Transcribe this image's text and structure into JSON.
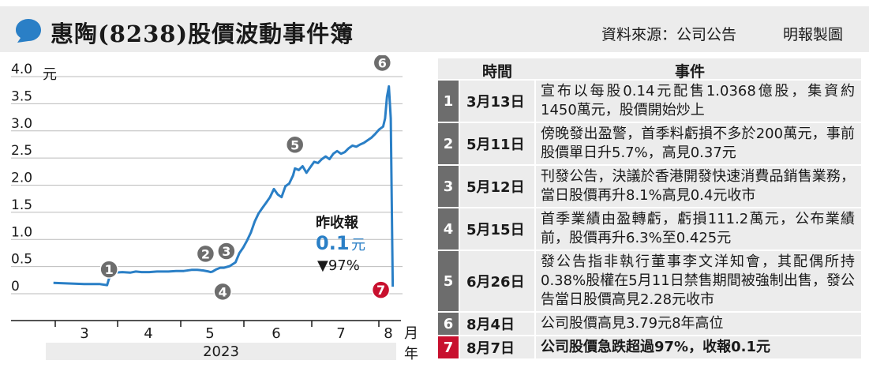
{
  "header": {
    "title": "惠陶(8238)股價波動事件簿",
    "source": "資料來源：公司公告",
    "credit": "明報製圖"
  },
  "chart_data": {
    "type": "line",
    "y_unit_label": "元",
    "x_unit_label_top": "月",
    "x_unit_label_bottom": "年",
    "year_label": "2023",
    "ylim": [
      0,
      4.0
    ],
    "y_ticks": [
      "4.0",
      "3.5",
      "3.0",
      "2.5",
      "2.0",
      "1.5",
      "1.0",
      "0.5",
      "0"
    ],
    "x_ticks": [
      "3",
      "4",
      "5",
      "6",
      "7",
      "8"
    ],
    "callout": {
      "label": "昨收報",
      "price": "0.1",
      "price_unit": "元",
      "change": "▼97%"
    },
    "markers": [
      {
        "id": "1",
        "x": 73,
        "y": 0.1,
        "color": "#6d6d6d"
      },
      {
        "id": "2",
        "x": 125,
        "y": 0.3,
        "color": "#6d6d6d"
      },
      {
        "id": "3",
        "x": 126,
        "y": 0.32,
        "color": "#6d6d6d"
      },
      {
        "id": "4",
        "x": 129,
        "y": 0.33,
        "color": "#6d6d6d"
      },
      {
        "id": "5",
        "x": 170,
        "y": 2.28,
        "color": "#6d6d6d"
      },
      {
        "id": "6",
        "x": 218,
        "y": 3.79,
        "color": "#6d6d6d"
      },
      {
        "id": "7",
        "x": 221,
        "y": 0.1,
        "color": "#c8102e"
      }
    ],
    "series": [
      {
        "color": "#2a7fc6",
        "x": [
          44,
          52,
          60,
          68,
          72,
          73,
          76,
          80,
          84,
          87,
          90,
          94,
          98,
          101,
          104,
          108,
          112,
          116,
          119,
          122,
          125,
          126,
          127,
          129,
          131,
          133,
          136,
          139,
          141,
          143,
          145,
          147,
          149,
          151,
          153,
          155,
          157,
          159,
          161,
          163,
          165,
          167,
          169,
          170,
          172,
          174,
          176,
          178,
          180,
          182,
          184,
          186,
          188,
          190,
          192,
          194,
          196,
          198,
          200,
          202,
          204,
          206,
          208,
          210,
          212,
          214,
          216,
          217,
          218,
          219,
          220,
          221
        ],
        "y": [
          0.17,
          0.16,
          0.15,
          0.15,
          0.13,
          0.25,
          0.36,
          0.37,
          0.36,
          0.38,
          0.37,
          0.37,
          0.38,
          0.38,
          0.38,
          0.39,
          0.39,
          0.41,
          0.41,
          0.4,
          0.38,
          0.37,
          0.38,
          0.42,
          0.45,
          0.45,
          0.48,
          0.55,
          0.72,
          0.82,
          0.95,
          1.1,
          1.3,
          1.45,
          1.55,
          1.65,
          1.75,
          1.9,
          1.8,
          1.75,
          1.95,
          2.0,
          2.15,
          2.28,
          2.25,
          2.32,
          2.2,
          2.3,
          2.4,
          2.38,
          2.45,
          2.5,
          2.45,
          2.55,
          2.6,
          2.55,
          2.58,
          2.65,
          2.7,
          2.68,
          2.72,
          2.75,
          2.8,
          2.85,
          2.92,
          3.0,
          3.05,
          3.2,
          3.6,
          3.79,
          3.2,
          0.1
        ]
      }
    ]
  },
  "table": {
    "col_time": "時間",
    "col_event": "事件",
    "rows": [
      {
        "num": "1",
        "date": "3月13日",
        "event": "宣布以每股0.14元配售1.0368億股，集資約1450萬元，股價開始炒上",
        "highlight": false
      },
      {
        "num": "2",
        "date": "5月11日",
        "event": "傍晚發出盈警，首季料虧損不多於200萬元，事前股價單日升5.7%，高見0.37元",
        "highlight": false
      },
      {
        "num": "3",
        "date": "5月12日",
        "event": "刊發公告，決議於香港開發快速消費品銷售業務，當日股價再升8.1%高見0.4元收市",
        "highlight": false
      },
      {
        "num": "4",
        "date": "5月15日",
        "event": "首季業績由盈轉虧，虧損111.2萬元，公布業績前，股價再升6.3%至0.425元",
        "highlight": false
      },
      {
        "num": "5",
        "date": "6月26日",
        "event": "發公告指非執行董事李文洋知會，其配偶所持0.38%股權在5月11日禁售期間被強制出售，發公告當日股價高見2.28元收市",
        "highlight": false
      },
      {
        "num": "6",
        "date": "8月4日",
        "event": "公司股價高見3.79元8年高位",
        "highlight": false
      },
      {
        "num": "7",
        "date": "8月7日",
        "event": "公司股價急跌超過97%，收報0.1元",
        "highlight": true
      }
    ]
  }
}
